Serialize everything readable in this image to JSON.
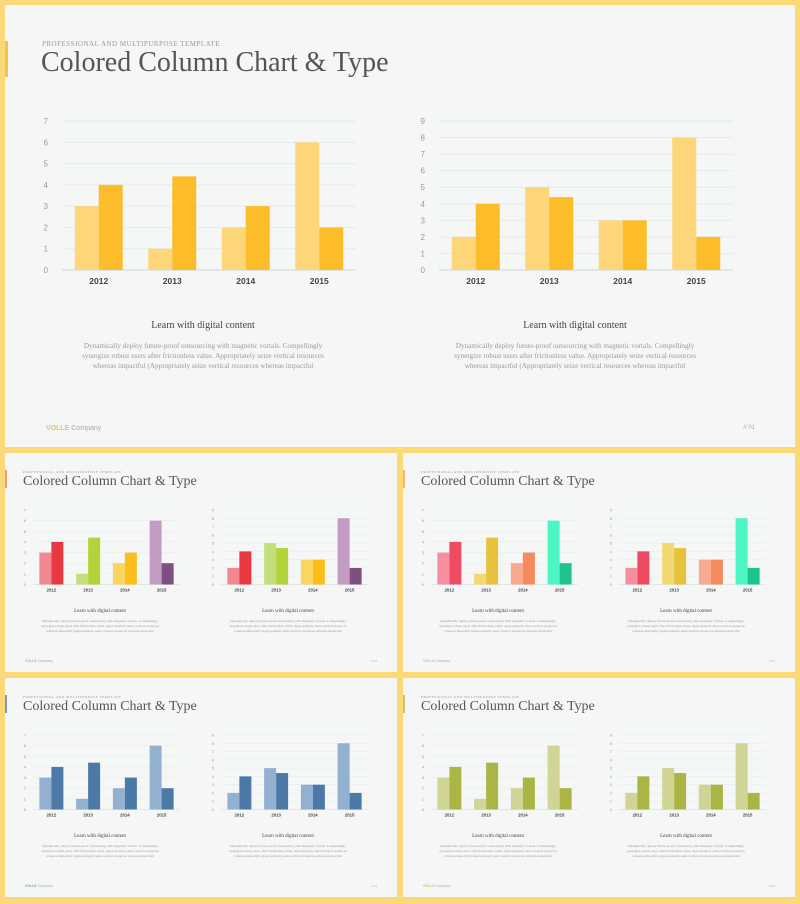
{
  "header": {
    "eyebrow": "PROFESSIONAL AND MULTIPURPOSE  TEMPLATE",
    "title": "Colored Column Chart & Type"
  },
  "caption": {
    "title": "Learn with digital content",
    "body": "Dynamically deploy future-proof outsourcing with magnetic vortals. Compellingly synergize robust users after frictionless value. Appropriately seize vertical resources whereas impactful (Appropriately seize vertical resources whereas impactful"
  },
  "footer": {
    "brand_name": "VOLLE",
    "brand_rest": " Company",
    "page_number": "// 01"
  },
  "themes": [
    {
      "name": "yellow",
      "light": "#fdd67a",
      "dark": "#fdbd2b",
      "accent": "#f5c24a"
    },
    {
      "name": "multi",
      "light": [
        "#f0898f",
        "#c4e07a",
        "#fbd65e",
        "#c49bc3"
      ],
      "dark": [
        "#e83842",
        "#b3d33a",
        "#fbbe1b",
        "#7d5080"
      ],
      "accent": "#e8a07a"
    },
    {
      "name": "multi-2",
      "light": [
        "#f78ea0",
        "#f1d873",
        "#f8a990",
        "#4cf6c4"
      ],
      "dark": [
        "#ee4a62",
        "#e7c33d",
        "#f48a5d",
        "#1ec589"
      ],
      "accent": "#f2b47a"
    },
    {
      "name": "blue",
      "light": "#92b1d1",
      "dark": "#4d79a7",
      "accent": "#7b9ab8"
    },
    {
      "name": "olive",
      "light": "#d0d494",
      "dark": "#aab546",
      "accent": "#c3c77a"
    }
  ],
  "chart_data": [
    {
      "type": "bar",
      "categories": [
        "2012",
        "2013",
        "2014",
        "2015"
      ],
      "series": [
        {
          "values": [
            3,
            1,
            2,
            6
          ]
        },
        {
          "values": [
            4,
            4.4,
            3,
            2
          ]
        }
      ],
      "ylim": [
        0,
        7
      ],
      "yticks": [
        "0",
        "1",
        "2",
        "3",
        "4",
        "5",
        "6",
        "7"
      ],
      "grid": true
    },
    {
      "type": "bar",
      "categories": [
        "2012",
        "2013",
        "2014",
        "2015"
      ],
      "series": [
        {
          "values": [
            2,
            5,
            3,
            8
          ]
        },
        {
          "values": [
            4,
            4.4,
            3,
            2
          ]
        }
      ],
      "ylim": [
        0,
        9
      ],
      "yticks": [
        "0",
        "1",
        "2",
        "3",
        "4",
        "5",
        "6",
        "7",
        "8",
        "9"
      ],
      "grid": true
    }
  ]
}
